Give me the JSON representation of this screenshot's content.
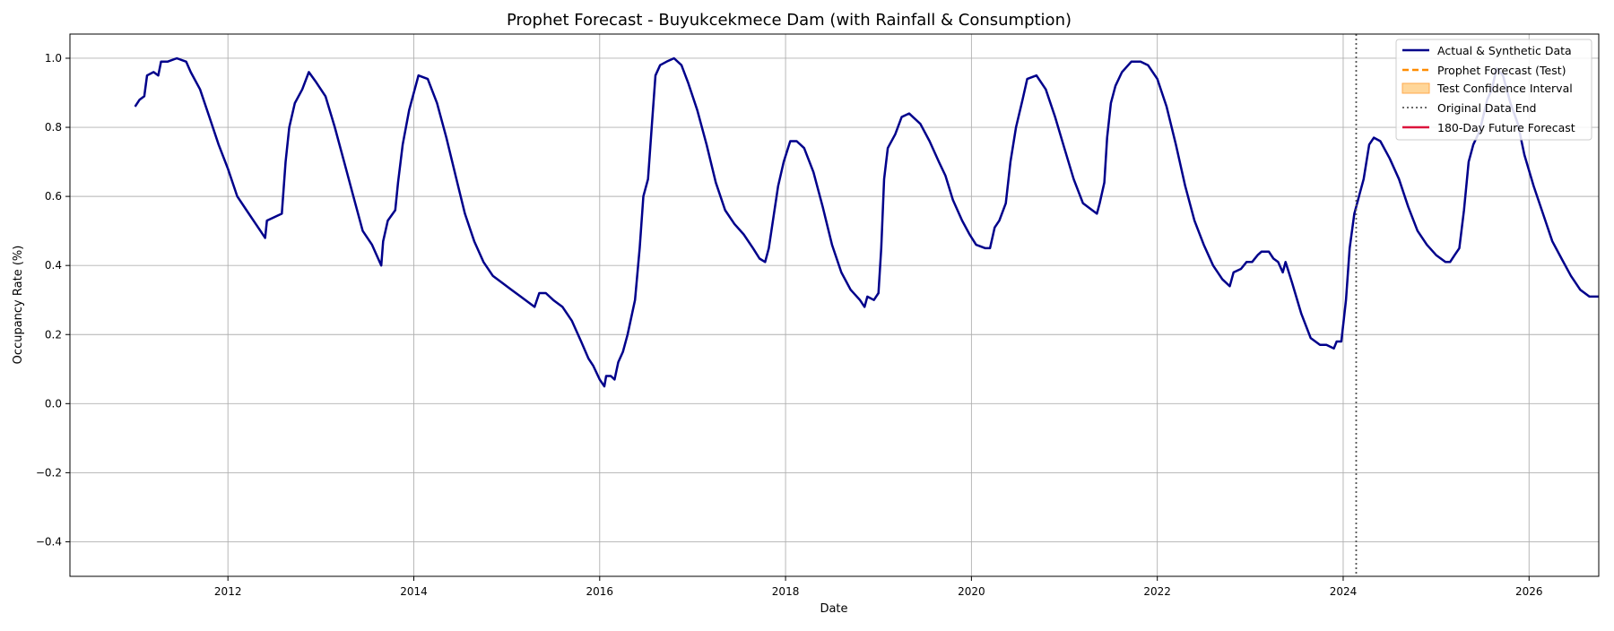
{
  "chart_data": {
    "type": "line",
    "title": "Prophet Forecast - Buyukcekmece Dam (with Rainfall & Consumption)",
    "xlabel": "Date",
    "ylabel": "Occupancy Rate (%)",
    "xlim": [
      2010.3,
      2026.75
    ],
    "ylim": [
      -0.5,
      1.07
    ],
    "x_ticks": [
      2012,
      2014,
      2016,
      2018,
      2020,
      2022,
      2024,
      2026
    ],
    "y_ticks": [
      -0.4,
      -0.2,
      0.0,
      0.2,
      0.4,
      0.6,
      0.8,
      1.0
    ],
    "x_tick_labels": [
      "2012",
      "2014",
      "2016",
      "2018",
      "2020",
      "2022",
      "2024",
      "2026"
    ],
    "y_tick_labels": [
      "−0.4",
      "−0.2",
      "0.0",
      "0.2",
      "0.4",
      "0.6",
      "0.8",
      "1.0"
    ],
    "grid": true,
    "legend_position": "top-right",
    "legend": [
      "Actual & Synthetic Data",
      "Prophet Forecast (Test)",
      "Test Confidence Interval",
      "Original Data End",
      "180-Day Future Forecast"
    ],
    "vline": {
      "x": 2024.14,
      "name": "Original Data End",
      "color": "#555555"
    },
    "series": [
      {
        "name": "Actual & Synthetic Data",
        "color": "#00008b",
        "points": [
          [
            2011.0,
            0.86
          ],
          [
            2011.05,
            0.88
          ],
          [
            2011.1,
            0.89
          ],
          [
            2011.13,
            0.95
          ],
          [
            2011.2,
            0.96
          ],
          [
            2011.25,
            0.95
          ],
          [
            2011.28,
            0.99
          ],
          [
            2011.35,
            0.99
          ],
          [
            2011.45,
            1.0
          ],
          [
            2011.55,
            0.99
          ],
          [
            2011.6,
            0.96
          ],
          [
            2011.7,
            0.91
          ],
          [
            2011.8,
            0.83
          ],
          [
            2011.9,
            0.75
          ],
          [
            2012.0,
            0.68
          ],
          [
            2012.1,
            0.6
          ],
          [
            2012.2,
            0.56
          ],
          [
            2012.3,
            0.52
          ],
          [
            2012.4,
            0.48
          ],
          [
            2012.42,
            0.53
          ],
          [
            2012.5,
            0.54
          ],
          [
            2012.58,
            0.55
          ],
          [
            2012.62,
            0.7
          ],
          [
            2012.66,
            0.8
          ],
          [
            2012.72,
            0.87
          ],
          [
            2012.8,
            0.91
          ],
          [
            2012.87,
            0.96
          ],
          [
            2012.95,
            0.93
          ],
          [
            2013.05,
            0.89
          ],
          [
            2013.15,
            0.8
          ],
          [
            2013.25,
            0.7
          ],
          [
            2013.35,
            0.6
          ],
          [
            2013.45,
            0.5
          ],
          [
            2013.55,
            0.46
          ],
          [
            2013.65,
            0.4
          ],
          [
            2013.67,
            0.47
          ],
          [
            2013.72,
            0.53
          ],
          [
            2013.8,
            0.56
          ],
          [
            2013.83,
            0.64
          ],
          [
            2013.88,
            0.75
          ],
          [
            2013.95,
            0.85
          ],
          [
            2014.05,
            0.95
          ],
          [
            2014.15,
            0.94
          ],
          [
            2014.25,
            0.87
          ],
          [
            2014.35,
            0.77
          ],
          [
            2014.45,
            0.66
          ],
          [
            2014.55,
            0.55
          ],
          [
            2014.65,
            0.47
          ],
          [
            2014.75,
            0.41
          ],
          [
            2014.85,
            0.37
          ],
          [
            2014.95,
            0.35
          ],
          [
            2015.05,
            0.33
          ],
          [
            2015.15,
            0.31
          ],
          [
            2015.25,
            0.29
          ],
          [
            2015.3,
            0.28
          ],
          [
            2015.35,
            0.32
          ],
          [
            2015.42,
            0.32
          ],
          [
            2015.5,
            0.3
          ],
          [
            2015.6,
            0.28
          ],
          [
            2015.7,
            0.24
          ],
          [
            2015.8,
            0.18
          ],
          [
            2015.88,
            0.13
          ],
          [
            2015.93,
            0.11
          ],
          [
            2016.0,
            0.07
          ],
          [
            2016.05,
            0.05
          ],
          [
            2016.07,
            0.08
          ],
          [
            2016.12,
            0.08
          ],
          [
            2016.16,
            0.07
          ],
          [
            2016.2,
            0.12
          ],
          [
            2016.25,
            0.15
          ],
          [
            2016.3,
            0.2
          ],
          [
            2016.38,
            0.3
          ],
          [
            2016.43,
            0.45
          ],
          [
            2016.47,
            0.6
          ],
          [
            2016.52,
            0.65
          ],
          [
            2016.56,
            0.8
          ],
          [
            2016.6,
            0.95
          ],
          [
            2016.65,
            0.98
          ],
          [
            2016.72,
            0.99
          ],
          [
            2016.8,
            1.0
          ],
          [
            2016.88,
            0.98
          ],
          [
            2016.95,
            0.93
          ],
          [
            2017.05,
            0.85
          ],
          [
            2017.15,
            0.75
          ],
          [
            2017.25,
            0.64
          ],
          [
            2017.35,
            0.56
          ],
          [
            2017.45,
            0.52
          ],
          [
            2017.55,
            0.49
          ],
          [
            2017.65,
            0.45
          ],
          [
            2017.72,
            0.42
          ],
          [
            2017.78,
            0.41
          ],
          [
            2017.82,
            0.45
          ],
          [
            2017.87,
            0.54
          ],
          [
            2017.92,
            0.63
          ],
          [
            2017.98,
            0.7
          ],
          [
            2018.05,
            0.76
          ],
          [
            2018.12,
            0.76
          ],
          [
            2018.2,
            0.74
          ],
          [
            2018.3,
            0.67
          ],
          [
            2018.4,
            0.57
          ],
          [
            2018.5,
            0.46
          ],
          [
            2018.6,
            0.38
          ],
          [
            2018.7,
            0.33
          ],
          [
            2018.8,
            0.3
          ],
          [
            2018.85,
            0.28
          ],
          [
            2018.88,
            0.31
          ],
          [
            2018.95,
            0.3
          ],
          [
            2019.0,
            0.32
          ],
          [
            2019.03,
            0.45
          ],
          [
            2019.06,
            0.65
          ],
          [
            2019.1,
            0.74
          ],
          [
            2019.18,
            0.78
          ],
          [
            2019.25,
            0.83
          ],
          [
            2019.33,
            0.84
          ],
          [
            2019.45,
            0.81
          ],
          [
            2019.55,
            0.76
          ],
          [
            2019.65,
            0.7
          ],
          [
            2019.72,
            0.66
          ],
          [
            2019.8,
            0.59
          ],
          [
            2019.9,
            0.53
          ],
          [
            2019.98,
            0.49
          ],
          [
            2020.05,
            0.46
          ],
          [
            2020.15,
            0.45
          ],
          [
            2020.2,
            0.45
          ],
          [
            2020.25,
            0.51
          ],
          [
            2020.3,
            0.53
          ],
          [
            2020.37,
            0.58
          ],
          [
            2020.42,
            0.7
          ],
          [
            2020.48,
            0.8
          ],
          [
            2020.55,
            0.88
          ],
          [
            2020.6,
            0.94
          ],
          [
            2020.7,
            0.95
          ],
          [
            2020.8,
            0.91
          ],
          [
            2020.9,
            0.83
          ],
          [
            2021.0,
            0.74
          ],
          [
            2021.1,
            0.65
          ],
          [
            2021.2,
            0.58
          ],
          [
            2021.3,
            0.56
          ],
          [
            2021.35,
            0.55
          ],
          [
            2021.38,
            0.58
          ],
          [
            2021.43,
            0.64
          ],
          [
            2021.46,
            0.77
          ],
          [
            2021.5,
            0.87
          ],
          [
            2021.55,
            0.92
          ],
          [
            2021.62,
            0.96
          ],
          [
            2021.72,
            0.99
          ],
          [
            2021.82,
            0.99
          ],
          [
            2021.9,
            0.98
          ],
          [
            2022.0,
            0.94
          ],
          [
            2022.1,
            0.86
          ],
          [
            2022.2,
            0.75
          ],
          [
            2022.3,
            0.63
          ],
          [
            2022.4,
            0.53
          ],
          [
            2022.5,
            0.46
          ],
          [
            2022.6,
            0.4
          ],
          [
            2022.7,
            0.36
          ],
          [
            2022.78,
            0.34
          ],
          [
            2022.82,
            0.38
          ],
          [
            2022.9,
            0.39
          ],
          [
            2022.96,
            0.41
          ],
          [
            2023.02,
            0.41
          ],
          [
            2023.08,
            0.43
          ],
          [
            2023.12,
            0.44
          ],
          [
            2023.2,
            0.44
          ],
          [
            2023.25,
            0.42
          ],
          [
            2023.3,
            0.41
          ],
          [
            2023.35,
            0.38
          ],
          [
            2023.38,
            0.41
          ],
          [
            2023.45,
            0.35
          ],
          [
            2023.55,
            0.26
          ],
          [
            2023.65,
            0.19
          ],
          [
            2023.75,
            0.17
          ],
          [
            2023.82,
            0.17
          ],
          [
            2023.9,
            0.16
          ],
          [
            2023.93,
            0.18
          ],
          [
            2023.98,
            0.18
          ],
          [
            2024.03,
            0.3
          ],
          [
            2024.07,
            0.45
          ],
          [
            2024.12,
            0.55
          ],
          [
            2024.18,
            0.61
          ],
          [
            2024.22,
            0.65
          ],
          [
            2024.28,
            0.75
          ],
          [
            2024.33,
            0.77
          ],
          [
            2024.4,
            0.76
          ],
          [
            2024.5,
            0.71
          ],
          [
            2024.6,
            0.65
          ],
          [
            2024.7,
            0.57
          ],
          [
            2024.8,
            0.5
          ],
          [
            2024.9,
            0.46
          ],
          [
            2025.0,
            0.43
          ],
          [
            2025.1,
            0.41
          ],
          [
            2025.15,
            0.41
          ],
          [
            2025.2,
            0.43
          ],
          [
            2025.25,
            0.45
          ],
          [
            2025.3,
            0.56
          ],
          [
            2025.35,
            0.7
          ],
          [
            2025.4,
            0.75
          ],
          [
            2025.47,
            0.79
          ],
          [
            2025.55,
            0.88
          ],
          [
            2025.6,
            0.91
          ],
          [
            2025.65,
            0.97
          ],
          [
            2025.72,
            0.95
          ],
          [
            2025.8,
            0.87
          ],
          [
            2025.88,
            0.81
          ],
          [
            2025.95,
            0.72
          ],
          [
            2026.05,
            0.63
          ],
          [
            2026.15,
            0.55
          ],
          [
            2026.25,
            0.47
          ],
          [
            2026.35,
            0.42
          ],
          [
            2026.45,
            0.37
          ],
          [
            2026.55,
            0.33
          ],
          [
            2026.65,
            0.31
          ],
          [
            2026.75,
            0.31
          ]
        ]
      }
    ]
  }
}
